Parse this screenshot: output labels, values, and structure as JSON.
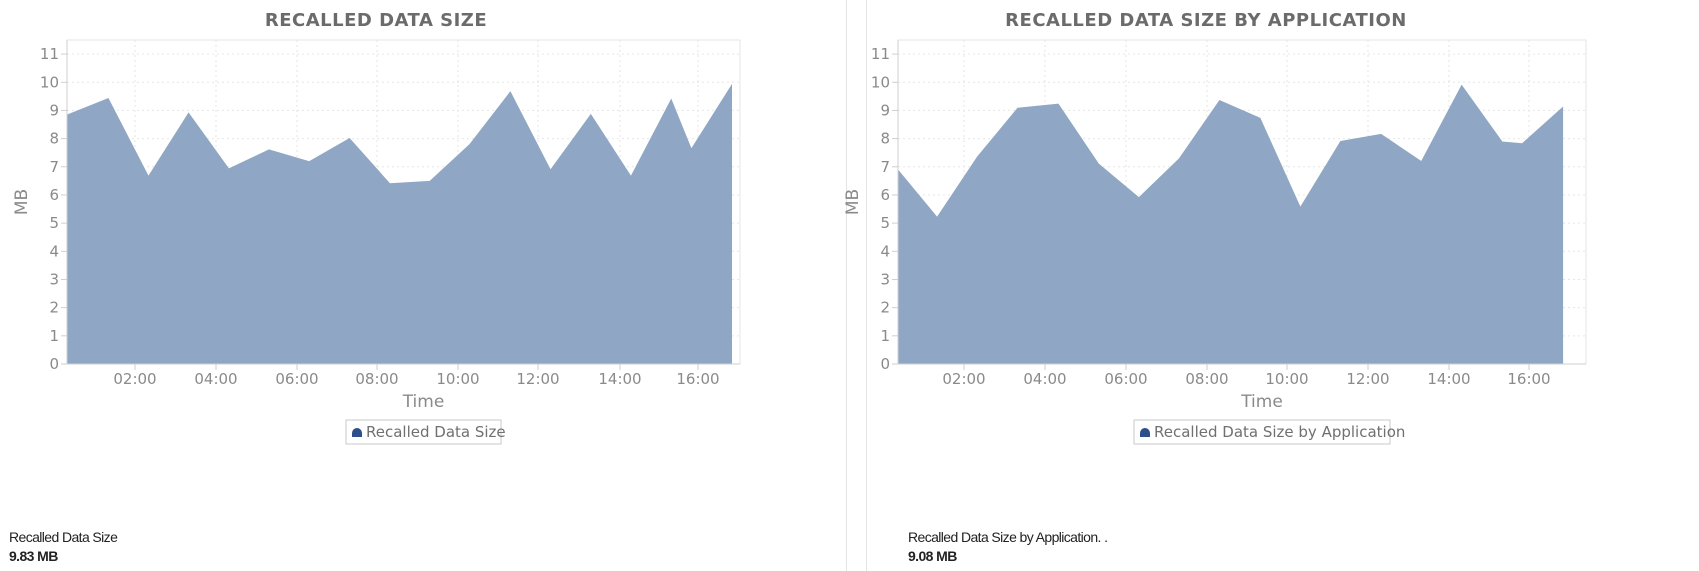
{
  "chart_data": [
    {
      "type": "area",
      "title": "RECALLED DATA SIZE",
      "xlabel": "Time",
      "ylabel": "MB",
      "ylim": [
        0,
        11.5
      ],
      "yticks": [
        "0",
        "1",
        "2",
        "3",
        "4",
        "5",
        "6",
        "7",
        "8",
        "9",
        "10",
        "11"
      ],
      "x_tick_labels": [
        "02:00",
        "04:00",
        "06:00",
        "08:00",
        "10:00",
        "12:00",
        "14:00",
        "16:00"
      ],
      "grid": true,
      "legend": "bottom-center",
      "x": [
        "00:20",
        "01:20",
        "02:20",
        "03:20",
        "04:20",
        "05:20",
        "06:20",
        "07:20",
        "08:20",
        "09:20",
        "10:20",
        "11:20",
        "12:20",
        "13:20",
        "14:20",
        "15:20",
        "15:50",
        "16:50"
      ],
      "series": [
        {
          "name": "Recalled Data Size",
          "values": [
            8.85,
            9.42,
            6.65,
            8.9,
            6.92,
            7.6,
            7.18,
            8.0,
            6.4,
            6.48,
            7.8,
            9.65,
            6.88,
            8.85,
            6.65,
            9.38,
            7.62,
            9.88
          ]
        }
      ],
      "summary_label": "Recalled Data Size",
      "summary_value": "9.83 MB"
    },
    {
      "type": "area",
      "title": "RECALLED DATA SIZE BY APPLICATION",
      "xlabel": "Time",
      "ylabel": "MB",
      "ylim": [
        0,
        11.5
      ],
      "yticks": [
        "0",
        "1",
        "2",
        "3",
        "4",
        "5",
        "6",
        "7",
        "8",
        "9",
        "10",
        "11"
      ],
      "x_tick_labels": [
        "02:00",
        "04:00",
        "06:00",
        "08:00",
        "10:00",
        "12:00",
        "14:00",
        "16:00"
      ],
      "grid": true,
      "legend": "bottom-center",
      "x": [
        "00:20",
        "01:20",
        "02:20",
        "03:20",
        "04:20",
        "05:20",
        "06:20",
        "07:20",
        "08:20",
        "09:20",
        "10:20",
        "11:20",
        "12:20",
        "13:20",
        "14:20",
        "15:20",
        "15:50",
        "16:50"
      ],
      "series": [
        {
          "name": "Recalled Data Size by Application",
          "values": [
            6.88,
            5.2,
            7.35,
            9.08,
            9.22,
            7.1,
            5.9,
            7.28,
            9.35,
            8.72,
            5.55,
            7.9,
            8.15,
            7.18,
            9.88,
            7.88,
            7.82,
            9.1
          ]
        }
      ],
      "summary_label": "Recalled Data Size by Application. .",
      "summary_value": "9.08 MB"
    }
  ],
  "colors": {
    "area_fill": "#8fa7c4",
    "legend_marker": "#2f4f8c",
    "grid": "#e6e6e6",
    "axis": "#cfcfcf"
  }
}
